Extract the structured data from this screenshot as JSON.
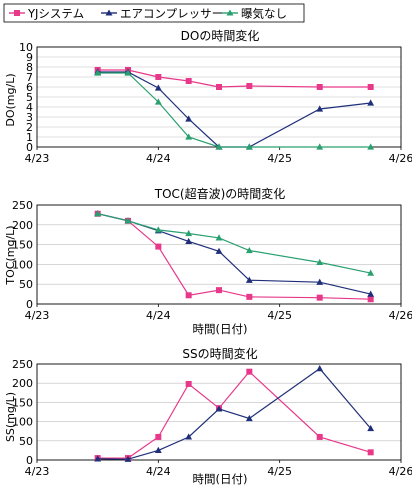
{
  "legend": {
    "items": [
      {
        "label": "YJシステム",
        "color": "#e8388a",
        "marker": "square"
      },
      {
        "label": "エアコンプレッサー",
        "color": "#1f2f7a",
        "marker": "triangle"
      },
      {
        "label": "曝気なし",
        "color": "#2aa070",
        "marker": "triangle"
      }
    ]
  },
  "chart_data": [
    {
      "type": "line",
      "title": "DOの時間変化",
      "xlabel": "",
      "ylabel": "DO(mg/L)",
      "xlim": [
        0,
        3
      ],
      "ylim": [
        0,
        10
      ],
      "yticks": [
        0,
        1,
        2,
        3,
        4,
        5,
        6,
        7,
        8,
        9,
        10
      ],
      "xticks": [
        0,
        1,
        2,
        3
      ],
      "xtick_labels": [
        "4/23",
        "4/24",
        "4/25",
        "4/26"
      ],
      "series": [
        {
          "name": "YJシステム",
          "color": "#e8388a",
          "marker": "square",
          "x": [
            0.5,
            0.75,
            1.0,
            1.25,
            1.5,
            1.75,
            2.33,
            2.75
          ],
          "y": [
            7.7,
            7.7,
            7.0,
            6.6,
            6.0,
            6.1,
            6.0,
            6.0
          ]
        },
        {
          "name": "エアコンプレッサー",
          "color": "#1f2f7a",
          "marker": "triangle",
          "x": [
            0.5,
            0.75,
            1.0,
            1.25,
            1.5,
            1.75,
            2.33,
            2.75
          ],
          "y": [
            7.5,
            7.5,
            5.9,
            2.8,
            0.0,
            0.0,
            3.8,
            4.4
          ]
        },
        {
          "name": "曝気なし",
          "color": "#2aa070",
          "marker": "triangle",
          "x": [
            0.5,
            0.75,
            1.0,
            1.25,
            1.5,
            1.75,
            2.33,
            2.75
          ],
          "y": [
            7.4,
            7.4,
            4.5,
            1.0,
            0.0,
            0.0,
            0.0,
            0.0
          ]
        }
      ]
    },
    {
      "type": "line",
      "title": "TOC(超音波)の時間変化",
      "xlabel": "時間(日付)",
      "ylabel": "TOC(mg/L)",
      "xlim": [
        0,
        3
      ],
      "ylim": [
        0,
        250
      ],
      "yticks": [
        0,
        50,
        100,
        150,
        200,
        250
      ],
      "xticks": [
        0,
        1,
        2,
        3
      ],
      "xtick_labels": [
        "4/23",
        "4/24",
        "4/25",
        "4/26"
      ],
      "series": [
        {
          "name": "YJシステム",
          "color": "#e8388a",
          "marker": "square",
          "x": [
            0.5,
            0.75,
            1.0,
            1.25,
            1.5,
            1.75,
            2.33,
            2.75
          ],
          "y": [
            228,
            210,
            145,
            22,
            35,
            18,
            16,
            12
          ]
        },
        {
          "name": "エアコンプレッサー",
          "color": "#1f2f7a",
          "marker": "triangle",
          "x": [
            0.5,
            0.75,
            1.0,
            1.25,
            1.5,
            1.75,
            2.33,
            2.75
          ],
          "y": [
            228,
            210,
            185,
            158,
            133,
            60,
            55,
            25
          ]
        },
        {
          "name": "曝気なし",
          "color": "#2aa070",
          "marker": "triangle",
          "x": [
            0.5,
            0.75,
            1.0,
            1.25,
            1.5,
            1.75,
            2.33,
            2.75
          ],
          "y": [
            228,
            210,
            187,
            178,
            167,
            135,
            105,
            78
          ]
        }
      ]
    },
    {
      "type": "line",
      "title": "SSの時間変化",
      "xlabel": "時間(日付)",
      "ylabel": "SS(mg/L)",
      "xlim": [
        0,
        3
      ],
      "ylim": [
        0,
        250
      ],
      "yticks": [
        0,
        50,
        100,
        150,
        200,
        250
      ],
      "xticks": [
        0,
        1,
        2,
        3
      ],
      "xtick_labels": [
        "4/23",
        "4/24",
        "4/25",
        "4/26"
      ],
      "series": [
        {
          "name": "YJシステム",
          "color": "#e8388a",
          "marker": "square",
          "x": [
            0.5,
            0.75,
            1.0,
            1.25,
            1.5,
            1.75,
            2.33,
            2.75
          ],
          "y": [
            5,
            5,
            60,
            198,
            135,
            230,
            60,
            20
          ]
        },
        {
          "name": "エアコンプレッサー",
          "color": "#1f2f7a",
          "marker": "triangle",
          "x": [
            0.5,
            0.75,
            1.0,
            1.25,
            1.5,
            1.75,
            2.33,
            2.75
          ],
          "y": [
            3,
            2,
            25,
            60,
            133,
            108,
            238,
            82
          ]
        }
      ]
    }
  ]
}
